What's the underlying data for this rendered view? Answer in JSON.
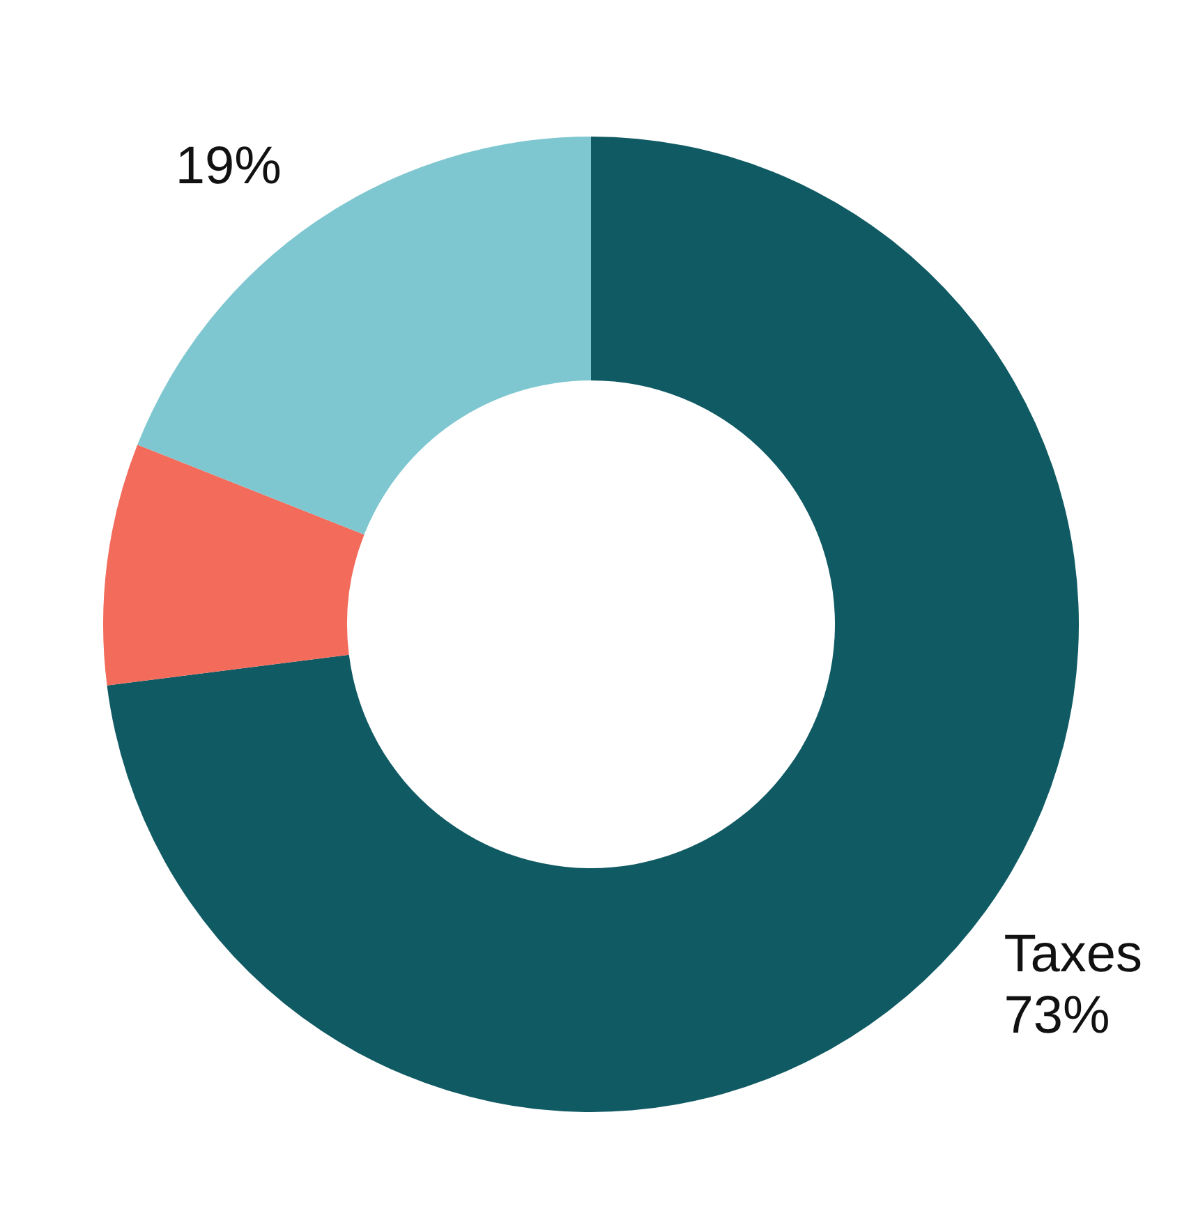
{
  "chart_data": {
    "type": "donut",
    "categories": [
      "Taxes",
      null,
      null
    ],
    "values": [
      73,
      8,
      19
    ],
    "colors": [
      "#105a63",
      "#f26b5b",
      "#7fc7d0"
    ],
    "value_labels": [
      "73%",
      null,
      "19%"
    ]
  }
}
